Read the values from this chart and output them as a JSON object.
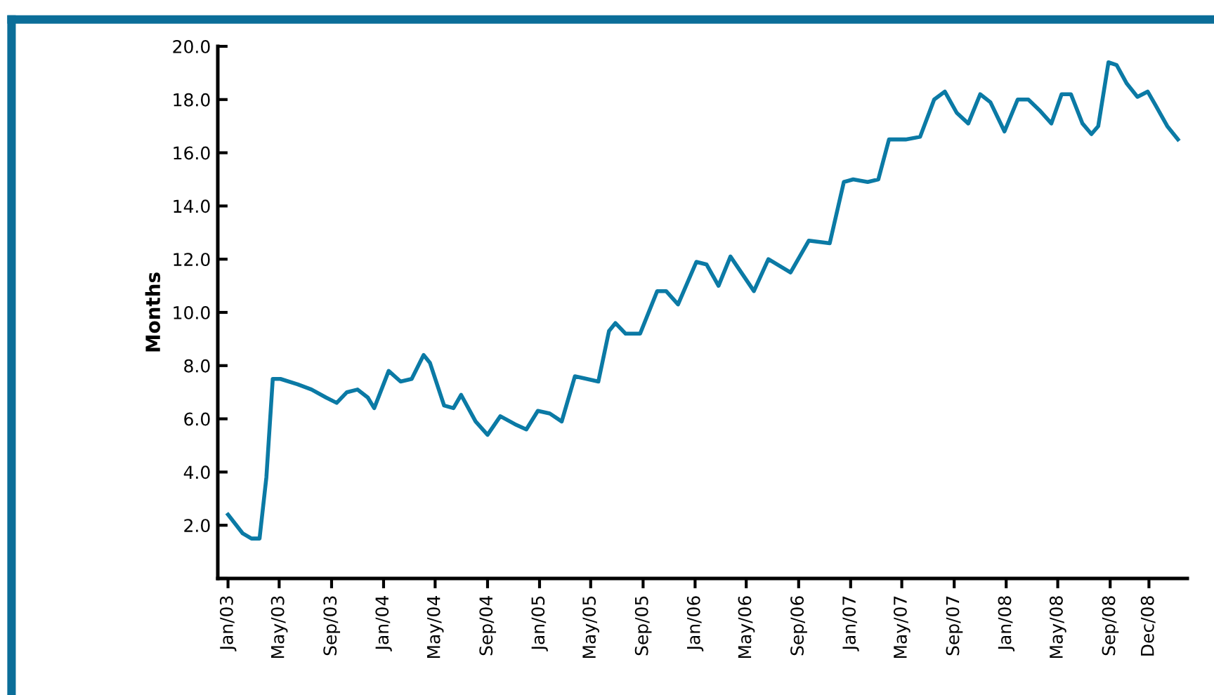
{
  "chart_data": {
    "type": "line",
    "ylabel": "Months",
    "x": [
      "2003-01-01",
      "2003-02-04",
      "2003-02-25",
      "2003-03-16",
      "2003-04-01",
      "2003-04-16",
      "2003-05-04",
      "2003-06-13",
      "2003-07-16",
      "2003-08-19",
      "2003-09-13",
      "2003-10-07",
      "2003-11-01",
      "2003-11-25",
      "2003-12-10",
      "2004-01-13",
      "2004-02-10",
      "2004-03-07",
      "2004-04-04",
      "2004-04-19",
      "2004-05-22",
      "2004-06-13",
      "2004-07-01",
      "2004-08-04",
      "2004-09-01",
      "2004-10-01",
      "2004-11-04",
      "2004-12-01",
      "2004-12-28",
      "2005-01-25",
      "2005-02-22",
      "2005-03-25",
      "2005-04-22",
      "2005-05-19",
      "2005-06-13",
      "2005-06-28",
      "2005-07-22",
      "2005-08-25",
      "2005-10-04",
      "2005-10-25",
      "2005-11-22",
      "2006-01-04",
      "2006-01-28",
      "2006-02-25",
      "2006-03-25",
      "2006-05-19",
      "2006-06-22",
      "2006-08-13",
      "2006-09-25",
      "2006-11-13",
      "2006-12-16",
      "2007-01-07",
      "2007-02-10",
      "2007-03-07",
      "2007-04-01",
      "2007-05-10",
      "2007-06-13",
      "2007-07-16",
      "2007-08-10",
      "2007-09-07",
      "2007-10-04",
      "2007-11-01",
      "2007-11-25",
      "2007-12-28",
      "2008-01-28",
      "2008-02-22",
      "2008-03-19",
      "2008-04-16",
      "2008-05-10",
      "2008-06-01",
      "2008-06-28",
      "2008-07-19",
      "2008-08-04",
      "2008-08-28",
      "2008-09-16",
      "2008-10-10",
      "2008-11-04",
      "2008-11-28",
      "2008-12-16",
      "2009-01-13",
      "2009-02-07"
    ],
    "series": [
      {
        "color": "#0b7aa5",
        "values": [
          2.4,
          1.7,
          1.5,
          1.5,
          3.8,
          7.5,
          7.5,
          7.3,
          7.1,
          6.8,
          6.6,
          7.0,
          7.1,
          6.8,
          6.4,
          7.8,
          7.4,
          7.5,
          8.4,
          8.1,
          6.5,
          6.4,
          6.9,
          5.9,
          5.4,
          6.1,
          5.8,
          5.6,
          6.3,
          6.2,
          5.9,
          7.6,
          7.5,
          7.4,
          9.3,
          9.6,
          9.2,
          9.2,
          10.8,
          10.8,
          10.3,
          11.9,
          11.8,
          11.0,
          12.1,
          10.8,
          12.0,
          11.5,
          12.7,
          12.6,
          14.9,
          15.0,
          14.9,
          15.0,
          16.5,
          16.5,
          16.6,
          18.0,
          18.3,
          17.5,
          17.1,
          18.2,
          17.9,
          16.8,
          18.0,
          18.0,
          17.6,
          17.1,
          18.2,
          18.2,
          17.1,
          16.7,
          17.0,
          19.4,
          19.3,
          18.6,
          18.1,
          18.3,
          17.8,
          17.0,
          16.5
        ]
      }
    ],
    "xlim": [
      "2002-12-08",
      "2009-03-01"
    ],
    "xticks": [
      {
        "value": "2003-01",
        "label": "Jan/03"
      },
      {
        "value": "2003-05",
        "label": "May/03"
      },
      {
        "value": "2003-09",
        "label": "Sep/03"
      },
      {
        "value": "2004-01",
        "label": "Jan/04"
      },
      {
        "value": "2004-05",
        "label": "May/04"
      },
      {
        "value": "2004-09",
        "label": "Sep/04"
      },
      {
        "value": "2005-01",
        "label": "Jan/05"
      },
      {
        "value": "2005-05",
        "label": "May/05"
      },
      {
        "value": "2005-09",
        "label": "Sep/05"
      },
      {
        "value": "2006-01",
        "label": "Jan/06"
      },
      {
        "value": "2006-05",
        "label": "May/06"
      },
      {
        "value": "2006-09",
        "label": "Sep/06"
      },
      {
        "value": "2007-01",
        "label": "Jan/07"
      },
      {
        "value": "2007-05",
        "label": "May/07"
      },
      {
        "value": "2007-09",
        "label": "Sep/07"
      },
      {
        "value": "2008-01",
        "label": "Jan/08"
      },
      {
        "value": "2008-05",
        "label": "May/08"
      },
      {
        "value": "2008-09",
        "label": "Sep/08"
      },
      {
        "value": "2008-12",
        "label": "Dec/08"
      }
    ],
    "ylim": [
      0,
      20
    ],
    "yticks": [
      {
        "value": 0,
        "label": null
      },
      {
        "value": 2,
        "label": "2.0"
      },
      {
        "value": 4,
        "label": "4.0"
      },
      {
        "value": 6,
        "label": "6.0"
      },
      {
        "value": 8,
        "label": "8.0"
      },
      {
        "value": 10,
        "label": "10.0"
      },
      {
        "value": 12,
        "label": "12.0"
      },
      {
        "value": 14,
        "label": "14.0"
      },
      {
        "value": 16,
        "label": "16.0"
      },
      {
        "value": 18,
        "label": "18.0"
      },
      {
        "value": 20,
        "label": "20.0"
      }
    ],
    "grid": false,
    "marker": "none",
    "line_style": "solid"
  }
}
